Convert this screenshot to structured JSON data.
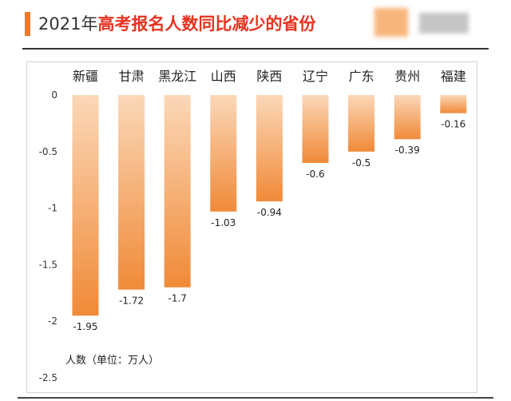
{
  "title": {
    "year": "2021年",
    "highlight": "高考报名人数同比减少的省份"
  },
  "unit_note": "人数（单位：万人）",
  "colors": {
    "accent": "#f07a2a",
    "title_highlight": "#e8321f",
    "bar_top": "#fbd8b8",
    "bar_bottom": "#f08a38"
  },
  "chart_data": {
    "type": "bar",
    "title": "2021年高考报名人数同比减少的省份",
    "ylabel": "人数（单位：万人）",
    "categories": [
      "新疆",
      "甘肃",
      "黑龙江",
      "山西",
      "陕西",
      "辽宁",
      "广东",
      "贵州",
      "福建"
    ],
    "values": [
      -1.95,
      -1.72,
      -1.7,
      -1.03,
      -0.94,
      -0.6,
      -0.5,
      -0.39,
      -0.16
    ],
    "value_labels": [
      "-1.95",
      "-1.72",
      "-1.7",
      "-1.03",
      "-0.94",
      "-0.6",
      "-0.5",
      "-0.39",
      "-0.16"
    ],
    "ylim": [
      -2.5,
      0
    ],
    "yticks": [
      0,
      -0.5,
      -1,
      -1.5,
      -2,
      -2.5
    ],
    "ytick_labels": [
      "0",
      "-0.5",
      "-1",
      "-1.5",
      "-2",
      "-2.5"
    ],
    "categories_position": "top",
    "grid": false,
    "legend": "none"
  }
}
